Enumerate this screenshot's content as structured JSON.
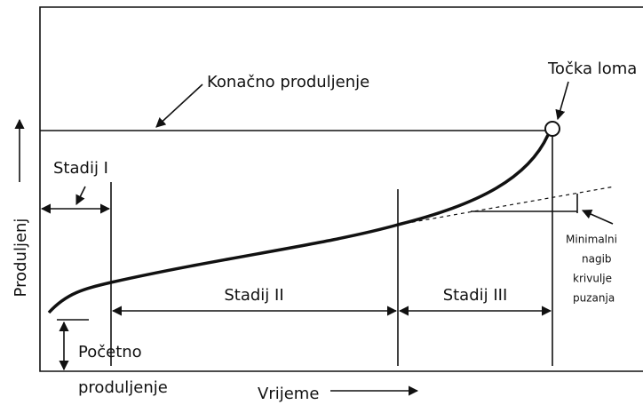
{
  "title_label": "Konačno produljenje",
  "break_label": "Točka loma",
  "y_axis_label": "Produljenj",
  "x_axis_label": "Vrijeme",
  "stages": [
    "Stadij I",
    "Stadij II",
    "Stadij III"
  ],
  "initial_label": [
    "Početno",
    "produljenje"
  ],
  "slope_label": [
    "Minimalni",
    "nagib",
    "krivulje",
    "puzanja"
  ]
}
